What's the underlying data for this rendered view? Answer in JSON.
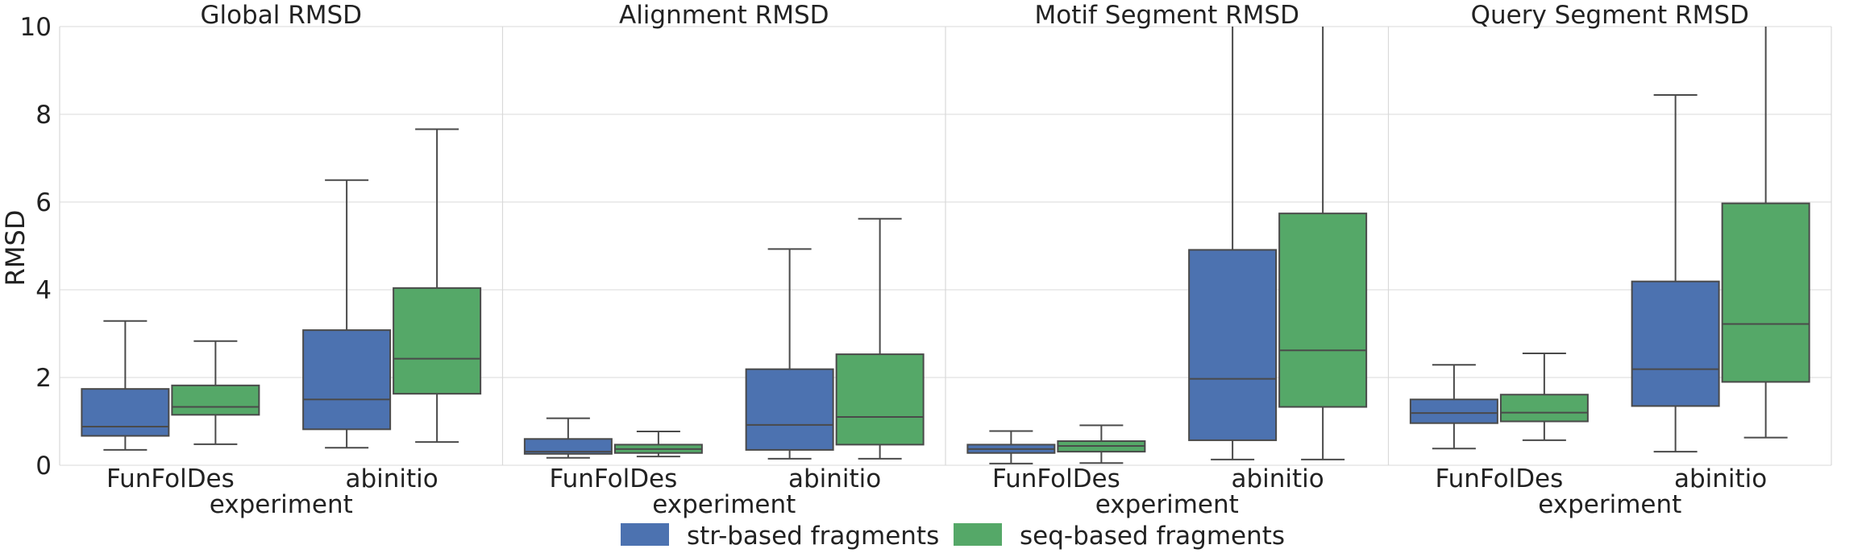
{
  "chart_data": {
    "type": "boxplot",
    "ylabel": "RMSD",
    "ylim": [
      0,
      10
    ],
    "yticks": [
      "0",
      "2",
      "4",
      "6",
      "8",
      "10"
    ],
    "xlabel": "experiment",
    "categories": [
      "FunFolDes",
      "abinitio"
    ],
    "grid": true,
    "legend_position": "bottom-center",
    "series": [
      {
        "name": "str-based fragments",
        "color": "#4c72b0"
      },
      {
        "name": "seq-based fragments",
        "color": "#55a868"
      }
    ],
    "panels": [
      {
        "title": "Global RMSD",
        "boxes": {
          "FunFolDes": [
            {
              "whisker_low": 0.35,
              "q1": 0.67,
              "median": 0.88,
              "q3": 1.74,
              "whisker_high": 3.29
            },
            {
              "whisker_low": 0.48,
              "q1": 1.15,
              "median": 1.33,
              "q3": 1.82,
              "whisker_high": 2.83
            }
          ],
          "abinitio": [
            {
              "whisker_low": 0.4,
              "q1": 0.82,
              "median": 1.5,
              "q3": 3.08,
              "whisker_high": 6.5
            },
            {
              "whisker_low": 0.53,
              "q1": 1.63,
              "median": 2.43,
              "q3": 4.04,
              "whisker_high": 7.66
            }
          ]
        }
      },
      {
        "title": "Alignment RMSD",
        "boxes": {
          "FunFolDes": [
            {
              "whisker_low": 0.17,
              "q1": 0.26,
              "median": 0.31,
              "q3": 0.6,
              "whisker_high": 1.07
            },
            {
              "whisker_low": 0.2,
              "q1": 0.28,
              "median": 0.37,
              "q3": 0.47,
              "whisker_high": 0.77
            }
          ],
          "abinitio": [
            {
              "whisker_low": 0.15,
              "q1": 0.35,
              "median": 0.92,
              "q3": 2.19,
              "whisker_high": 4.93
            },
            {
              "whisker_low": 0.15,
              "q1": 0.47,
              "median": 1.1,
              "q3": 2.53,
              "whisker_high": 5.62
            }
          ]
        }
      },
      {
        "title": "Motif Segment RMSD",
        "boxes": {
          "FunFolDes": [
            {
              "whisker_low": 0.04,
              "q1": 0.28,
              "median": 0.37,
              "q3": 0.47,
              "whisker_high": 0.78
            },
            {
              "whisker_low": 0.05,
              "q1": 0.31,
              "median": 0.44,
              "q3": 0.55,
              "whisker_high": 0.91
            }
          ],
          "abinitio": [
            {
              "whisker_low": 0.13,
              "q1": 0.57,
              "median": 1.97,
              "q3": 4.91,
              "whisker_high": 10.0
            },
            {
              "whisker_low": 0.13,
              "q1": 1.33,
              "median": 2.62,
              "q3": 5.74,
              "whisker_high": 10.0
            }
          ]
        }
      },
      {
        "title": "Query Segment RMSD",
        "boxes": {
          "FunFolDes": [
            {
              "whisker_low": 0.38,
              "q1": 0.96,
              "median": 1.19,
              "q3": 1.5,
              "whisker_high": 2.29
            },
            {
              "whisker_low": 0.57,
              "q1": 1.0,
              "median": 1.2,
              "q3": 1.61,
              "whisker_high": 2.55
            }
          ],
          "abinitio": [
            {
              "whisker_low": 0.31,
              "q1": 1.35,
              "median": 2.19,
              "q3": 4.19,
              "whisker_high": 8.44
            },
            {
              "whisker_low": 0.63,
              "q1": 1.9,
              "median": 3.22,
              "q3": 5.97,
              "whisker_high": 10.0
            }
          ]
        }
      }
    ]
  }
}
